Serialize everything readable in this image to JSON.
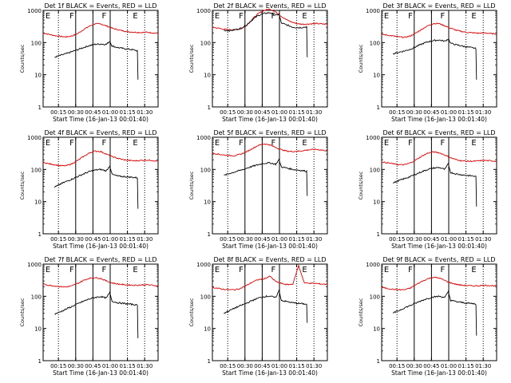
{
  "colors": {
    "events": "#000000",
    "lld": "#d40000",
    "axis": "#000000",
    "background": "#ffffff"
  },
  "panels": [
    {
      "title": "Det 1f BLACK = Events, RED = LLD",
      "ylabel": "Counts/sec",
      "xlabel": "Start Time (16-Jan-13 00:01:40)"
    },
    {
      "title": "Det 2f BLACK = Events, RED = LLD",
      "ylabel": "Counts/sec",
      "xlabel": "Start Time (16-Jan-13 00:01:40)"
    },
    {
      "title": "Det 3f BLACK = Events, RED = LLD",
      "ylabel": "Counts/sec",
      "xlabel": "Start Time (16-Jan-13 00:01:40)"
    },
    {
      "title": "Det 4f BLACK = Events, RED = LLD",
      "ylabel": "Counts/sec",
      "xlabel": "Start Time (16-Jan-13 00:01:40)"
    },
    {
      "title": "Det 5f BLACK = Events, RED = LLD",
      "ylabel": "Counts/sec",
      "xlabel": "Start Time (16-Jan-13 00:01:40)"
    },
    {
      "title": "Det 6f BLACK = Events, RED = LLD",
      "ylabel": "Counts/sec",
      "xlabel": "Start Time (16-Jan-13 00:01:40)"
    },
    {
      "title": "Det 7f BLACK = Events, RED = LLD",
      "ylabel": "Counts/sec",
      "xlabel": "Start Time (16-Jan-13 00:01:40)"
    },
    {
      "title": "Det 8f BLACK = Events, RED = LLD",
      "ylabel": "Counts/sec",
      "xlabel": "Start Time (16-Jan-13 00:01:40)"
    },
    {
      "title": "Det 9f BLACK = Events, RED = LLD",
      "ylabel": "Counts/sec",
      "xlabel": "Start Time (16-Jan-13 00:01:40)"
    }
  ],
  "chart_data": {
    "type": "line",
    "layout": "3x3 grid",
    "x_axis": {
      "units": "minutes since 00:01:40",
      "xlim": [
        0,
        100
      ],
      "ticks": [
        {
          "value": 13.33,
          "label": "00:15"
        },
        {
          "value": 28.33,
          "label": "00:30"
        },
        {
          "value": 43.33,
          "label": "00:45"
        },
        {
          "value": 58.33,
          "label": "01:00"
        },
        {
          "value": 73.33,
          "label": "01:15"
        },
        {
          "value": 88.33,
          "label": "01:30"
        }
      ]
    },
    "y_axis": {
      "scale": "log",
      "ylim": [
        1,
        1000
      ],
      "ticks": [
        {
          "value": 1,
          "label": "1"
        },
        {
          "value": 10,
          "label": "10"
        },
        {
          "value": 100,
          "label": "100"
        },
        {
          "value": 1000,
          "label": "1000"
        }
      ]
    },
    "markers": {
      "dotted": [
        13.33,
        73.33,
        88.33
      ],
      "solid": [
        28.33,
        43.33,
        58.33
      ],
      "letters": [
        {
          "x": 2,
          "label": "E"
        },
        {
          "x": 23,
          "label": "F"
        },
        {
          "x": 51,
          "label": "F"
        },
        {
          "x": 78,
          "label": "E"
        }
      ]
    },
    "panels": [
      {
        "events": {
          "x": [
            10,
            15,
            20,
            25,
            30,
            35,
            40,
            45,
            50,
            55,
            58,
            60,
            65,
            70,
            75,
            80,
            82,
            82.5
          ],
          "y": [
            35,
            40,
            45,
            52,
            60,
            70,
            80,
            88,
            90,
            88,
            110,
            78,
            70,
            65,
            62,
            58,
            55,
            7
          ]
        },
        "lld": {
          "x": [
            0,
            5,
            10,
            15,
            20,
            25,
            30,
            35,
            40,
            45,
            50,
            55,
            60,
            65,
            70,
            75,
            80,
            85,
            90,
            95,
            100
          ],
          "y": [
            200,
            180,
            165,
            155,
            150,
            160,
            190,
            250,
            320,
            380,
            380,
            330,
            280,
            250,
            230,
            215,
            210,
            205,
            210,
            200,
            195
          ]
        }
      },
      {
        "events": {
          "x": [
            10,
            15,
            20,
            25,
            30,
            35,
            40,
            45,
            50,
            55,
            58,
            60,
            65,
            70,
            75,
            80,
            82,
            82.5
          ],
          "y": [
            240,
            235,
            250,
            280,
            360,
            520,
            700,
            800,
            850,
            700,
            760,
            400,
            350,
            300,
            290,
            300,
            310,
            35
          ]
        },
        "lld": {
          "x": [
            0,
            5,
            10,
            15,
            20,
            25,
            30,
            35,
            40,
            45,
            50,
            55,
            60,
            65,
            70,
            75,
            80,
            85,
            90,
            95,
            100
          ],
          "y": [
            300,
            280,
            260,
            250,
            250,
            270,
            350,
            550,
            800,
            1000,
            1100,
            900,
            650,
            500,
            420,
            380,
            370,
            380,
            390,
            380,
            370
          ]
        }
      },
      {
        "events": {
          "x": [
            10,
            15,
            20,
            25,
            30,
            35,
            40,
            45,
            50,
            55,
            58,
            60,
            65,
            70,
            75,
            80,
            82,
            82.5
          ],
          "y": [
            45,
            50,
            55,
            62,
            75,
            90,
            105,
            115,
            120,
            110,
            130,
            95,
            85,
            78,
            72,
            68,
            65,
            7
          ]
        },
        "lld": {
          "x": [
            0,
            5,
            10,
            15,
            20,
            25,
            30,
            35,
            40,
            45,
            50,
            55,
            60,
            65,
            70,
            75,
            80,
            85,
            90,
            95,
            100
          ],
          "y": [
            180,
            170,
            160,
            150,
            145,
            160,
            200,
            260,
            330,
            390,
            390,
            330,
            280,
            240,
            220,
            205,
            200,
            195,
            200,
            190,
            185
          ]
        }
      },
      {
        "events": {
          "x": [
            10,
            15,
            20,
            25,
            30,
            35,
            40,
            45,
            50,
            55,
            58,
            60,
            65,
            70,
            75,
            80,
            82,
            82.5
          ],
          "y": [
            28,
            35,
            42,
            50,
            60,
            72,
            85,
            95,
            100,
            90,
            130,
            70,
            62,
            60,
            58,
            56,
            55,
            6
          ]
        },
        "lld": {
          "x": [
            0,
            5,
            10,
            15,
            20,
            25,
            30,
            35,
            40,
            45,
            50,
            55,
            60,
            65,
            70,
            75,
            80,
            85,
            90,
            95,
            100
          ],
          "y": [
            165,
            150,
            140,
            130,
            130,
            150,
            190,
            250,
            320,
            370,
            360,
            300,
            250,
            220,
            200,
            190,
            185,
            190,
            195,
            190,
            180
          ]
        }
      },
      {
        "events": {
          "x": [
            10,
            15,
            20,
            25,
            30,
            35,
            40,
            45,
            50,
            55,
            58,
            60,
            65,
            70,
            75,
            80,
            82,
            82.5
          ],
          "y": [
            65,
            75,
            85,
            95,
            110,
            125,
            140,
            155,
            160,
            145,
            200,
            120,
            110,
            100,
            95,
            90,
            88,
            15
          ]
        },
        "lld": {
          "x": [
            0,
            5,
            10,
            15,
            20,
            25,
            30,
            35,
            40,
            45,
            50,
            55,
            60,
            65,
            70,
            75,
            80,
            85,
            90,
            95,
            100
          ],
          "y": [
            320,
            300,
            280,
            270,
            270,
            300,
            360,
            450,
            560,
            620,
            580,
            480,
            410,
            370,
            360,
            370,
            390,
            410,
            420,
            400,
            380
          ]
        }
      },
      {
        "events": {
          "x": [
            10,
            15,
            20,
            25,
            30,
            35,
            40,
            45,
            50,
            55,
            58,
            60,
            65,
            70,
            75,
            80,
            82,
            82.5
          ],
          "y": [
            38,
            45,
            52,
            60,
            72,
            85,
            100,
            110,
            115,
            100,
            150,
            80,
            72,
            68,
            65,
            62,
            60,
            7
          ]
        },
        "lld": {
          "x": [
            0,
            5,
            10,
            15,
            20,
            25,
            30,
            35,
            40,
            45,
            50,
            55,
            60,
            65,
            70,
            75,
            80,
            85,
            90,
            95,
            100
          ],
          "y": [
            170,
            160,
            150,
            140,
            140,
            160,
            200,
            260,
            320,
            350,
            330,
            280,
            230,
            200,
            185,
            180,
            180,
            185,
            190,
            185,
            180
          ]
        }
      },
      {
        "events": {
          "x": [
            10,
            15,
            20,
            25,
            30,
            35,
            40,
            45,
            50,
            55,
            58,
            60,
            65,
            70,
            75,
            80,
            82,
            82.5
          ],
          "y": [
            28,
            33,
            40,
            48,
            58,
            70,
            82,
            92,
            98,
            88,
            130,
            70,
            63,
            60,
            57,
            55,
            52,
            5
          ]
        },
        "lld": {
          "x": [
            0,
            5,
            10,
            15,
            20,
            25,
            30,
            35,
            40,
            45,
            50,
            55,
            60,
            65,
            70,
            75,
            80,
            85,
            90,
            95,
            100
          ],
          "y": [
            240,
            220,
            210,
            200,
            195,
            210,
            250,
            310,
            360,
            380,
            360,
            300,
            260,
            240,
            230,
            225,
            220,
            225,
            230,
            220,
            210
          ]
        }
      },
      {
        "events": {
          "x": [
            10,
            15,
            20,
            25,
            30,
            35,
            40,
            45,
            50,
            55,
            58,
            60,
            65,
            70,
            75,
            80,
            82,
            82.5
          ],
          "y": [
            30,
            36,
            44,
            52,
            62,
            75,
            88,
            98,
            102,
            90,
            150,
            75,
            68,
            63,
            60,
            58,
            56,
            15
          ]
        },
        "lld": {
          "x": [
            0,
            5,
            10,
            15,
            20,
            25,
            30,
            35,
            40,
            45,
            50,
            55,
            60,
            65,
            70,
            75,
            80,
            85,
            90,
            95,
            100
          ],
          "y": [
            190,
            175,
            165,
            160,
            160,
            180,
            220,
            280,
            330,
            350,
            420,
            290,
            250,
            230,
            240,
            900,
            260,
            255,
            250,
            240,
            235
          ]
        }
      },
      {
        "events": {
          "x": [
            10,
            15,
            20,
            25,
            30,
            35,
            40,
            45,
            50,
            55,
            58,
            60,
            65,
            70,
            75,
            80,
            82,
            82.5
          ],
          "y": [
            30,
            36,
            44,
            52,
            62,
            74,
            86,
            95,
            100,
            92,
            140,
            75,
            68,
            64,
            61,
            59,
            57,
            6
          ]
        },
        "lld": {
          "x": [
            0,
            5,
            10,
            15,
            20,
            25,
            30,
            35,
            40,
            45,
            50,
            55,
            60,
            65,
            70,
            75,
            80,
            85,
            90,
            95,
            100
          ],
          "y": [
            190,
            175,
            165,
            160,
            160,
            180,
            230,
            290,
            350,
            390,
            370,
            310,
            260,
            235,
            220,
            215,
            210,
            215,
            220,
            215,
            210
          ]
        }
      }
    ]
  }
}
